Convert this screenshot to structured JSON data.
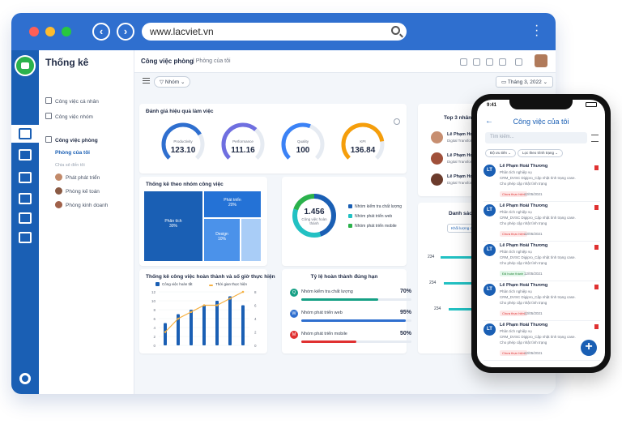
{
  "browser": {
    "url": "www.lacviet.vn"
  },
  "sidebar": {
    "title": "Thống kê",
    "items": [
      {
        "label": "Công việc cá nhân"
      },
      {
        "label": "Công việc nhóm"
      },
      {
        "label": "Công việc phòng"
      },
      {
        "label": "Phòng của tôi"
      },
      {
        "label": "Chia sẻ đến tôi"
      },
      {
        "label": "Phát phát triển"
      },
      {
        "label": "Phòng kế toán"
      },
      {
        "label": "Phòng kinh doanh"
      }
    ]
  },
  "header": {
    "breadcrumb": "Công việc phòng",
    "current": "Phòng của tôi"
  },
  "toolbar": {
    "filter_label": "Nhóm",
    "date_label": "Tháng 3, 2022"
  },
  "gauges": {
    "title": "Đánh giá hiệu quả làm việc",
    "items": [
      {
        "label": "Productivity",
        "value": "123.10",
        "fraction": 0.72,
        "color": "#2f6fcf"
      },
      {
        "label": "Performance",
        "value": "111.16",
        "fraction": 0.65,
        "color": "#6f6fe0"
      },
      {
        "label": "Quality",
        "value": "100",
        "fraction": 0.58,
        "color": "#3b82f6"
      },
      {
        "label": "KPI",
        "value": "136.84",
        "fraction": 0.8,
        "color": "#f59e0b"
      }
    ]
  },
  "treemap": {
    "title": "Thống kê theo nhóm công việc",
    "blocks": [
      {
        "label": "Phân tích",
        "pct": "30%"
      },
      {
        "label": "Phát triển",
        "pct": "20%"
      },
      {
        "label": "Design",
        "pct": "10%"
      }
    ]
  },
  "donut": {
    "value": "1.456",
    "caption": "Công việc hoàn thành",
    "legend": [
      {
        "label": "Nhóm kiểm tra chất lượng",
        "color": "#1a5fb4"
      },
      {
        "label": "Nhóm phát triển web",
        "color": "#22c1c3"
      },
      {
        "label": "Nhóm phát triển mobile",
        "color": "#2bb24c"
      }
    ]
  },
  "chart_data": {
    "type": "bar",
    "title": "Thống kê công việc hoàn thành và số giờ thực hiện",
    "series": [
      {
        "name": "Công việc hoàn tất",
        "values": [
          5,
          7,
          8,
          9,
          10,
          11,
          9
        ]
      },
      {
        "name": "Thời gian thực hiện",
        "values": [
          2,
          4,
          5,
          6,
          6,
          7,
          8
        ]
      }
    ],
    "y_left_ticks": [
      "12",
      "10",
      "8",
      "6",
      "4",
      "2",
      "0"
    ],
    "y_right_ticks": [
      "8",
      "6",
      "4",
      "2",
      "0"
    ],
    "ylim_left": [
      0,
      12
    ],
    "ylim_right": [
      0,
      8
    ]
  },
  "ratio": {
    "title": "Tỷ lệ hoàn thành đúng hạn",
    "rows": [
      {
        "letter": "Q",
        "label": "Nhóm kiểm tra chất lượng",
        "pct": "70%",
        "value": 0.7,
        "color": "#16a085"
      },
      {
        "letter": "W",
        "label": "Nhóm phát triển web",
        "pct": "95%",
        "value": 0.95,
        "color": "#2f6fcf"
      },
      {
        "letter": "M",
        "label": "Nhóm phát triển mobile",
        "pct": "50%",
        "value": 0.5,
        "color": "#e03131"
      }
    ]
  },
  "top3": {
    "title": "Top 3 nhân viên hiệ",
    "people": [
      {
        "name": "Lê Phạm Hoài T",
        "role": "Digital Transforma"
      },
      {
        "name": "Lê Phạm Hoài T",
        "role": "Digital Transforma"
      },
      {
        "name": "Lê Phạm Hoài T",
        "role": "Digital Transforma"
      }
    ]
  },
  "list": {
    "title": "Danh sách nhó",
    "chip": "Khối lượng công việ",
    "ticks": [
      "234",
      "234",
      "234"
    ]
  },
  "phone": {
    "time": "9:41",
    "title": "Công việc của tôi",
    "search_placeholder": "Tìm kiếm...",
    "chip1": "Độ ưu tiên",
    "chip2": "Lọc theo trình trạng",
    "tasks": [
      {
        "name": "Lê Phạm Hoài Thương",
        "l1": "Phân tích nghiệp vụ",
        "l2": "CRM_DVSC Digipro_Cập nhật tình trạng case.",
        "l3": "Cho phép cập nhật tình trạng",
        "status": "Chưa thực hiện",
        "date": "12/05/2021"
      },
      {
        "name": "Lê Phạm Hoài Thương",
        "l1": "Phân tích nghiệp vụ",
        "l2": "CRM_DVSC Digipro_Cập nhật tình trạng case.",
        "l3": "Cho phép cập nhật tình trạng",
        "status": "Chưa thực hiện",
        "date": "12/05/2021"
      },
      {
        "name": "Lê Phạm Hoài Thương",
        "l1": "Phân tích nghiệp vụ",
        "l2": "CRM_DVSC Digipro_Cập nhật tình trạng case.",
        "l3": "Cho phép cập nhật tình trạng",
        "status": "Đã hoàn thành",
        "date": "12/05/2021"
      },
      {
        "name": "Lê Phạm Hoài Thương",
        "l1": "Phân tích nghiệp vụ",
        "l2": "CRM_DVSC Digipro_Cập nhật tình trạng case.",
        "l3": "Cho phép cập nhật tình trạng",
        "status": "Chưa thực hiện",
        "date": "12/05/2021"
      },
      {
        "name": "Lê Phạm Hoài Thương",
        "l1": "Phân tích nghiệp vụ",
        "l2": "CRM_DVSC Digipro_Cập nhật tình trạng case.",
        "l3": "Cho phép cập nhật tình trạng",
        "status": "Chưa thực hiện",
        "date": "12/05/2021"
      }
    ]
  }
}
